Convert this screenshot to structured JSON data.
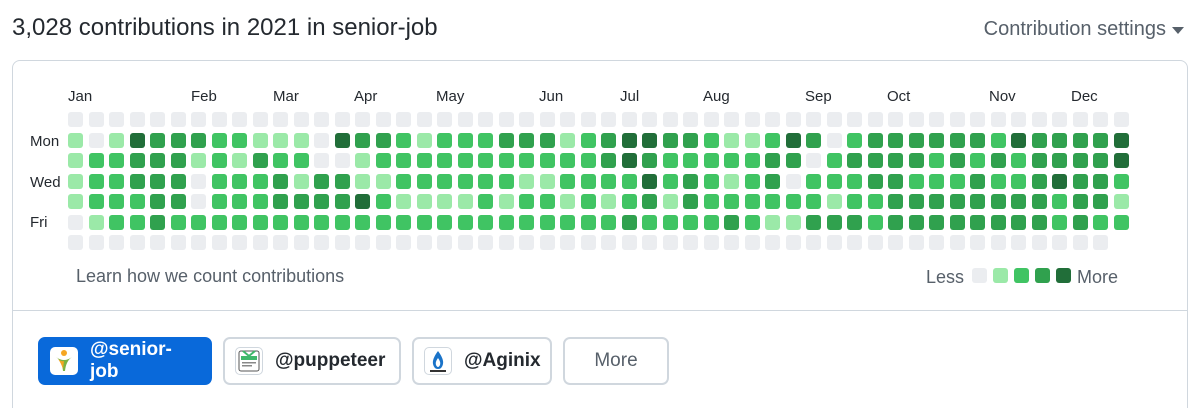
{
  "header": {
    "title": "3,028 contributions in 2021 in senior-job",
    "settings_label": "Contribution settings"
  },
  "graph": {
    "months": [
      "Jan",
      "Feb",
      "Mar",
      "Apr",
      "May",
      "Jun",
      "Jul",
      "Aug",
      "Sep",
      "Oct",
      "Nov",
      "Dec"
    ],
    "day_labels": [
      "Mon",
      "Wed",
      "Fri"
    ],
    "levels": [
      "0000000000000000000000000000000000000000000000000000",
      "1014333221110433212223331234433211243023333332433334",
      "1223331213220012222222222234322222330233332323233334",
      "1223330222313311222222112222423212302223322232234332",
      "1222330222333342111121221212313222222122333333332331",
      "0122322222222222222222222223222232113332333333332322",
      "000000000000000000000000000000000000000000000000000"
    ],
    "palette": [
      "#ebedf0",
      "#9be9a8",
      "#40c463",
      "#30a14e",
      "#216e39"
    ]
  },
  "footer": {
    "learn_link": "Learn how we count contributions",
    "legend_less": "Less",
    "legend_more": "More"
  },
  "orgs": [
    {
      "label": "@senior-job",
      "selected": true,
      "icon": "senior-job-logo"
    },
    {
      "label": "@puppeteer",
      "selected": false,
      "icon": "puppeteer-logo"
    },
    {
      "label": "@Aginix",
      "selected": false,
      "icon": "aginix-logo"
    }
  ],
  "more_label": "More"
}
